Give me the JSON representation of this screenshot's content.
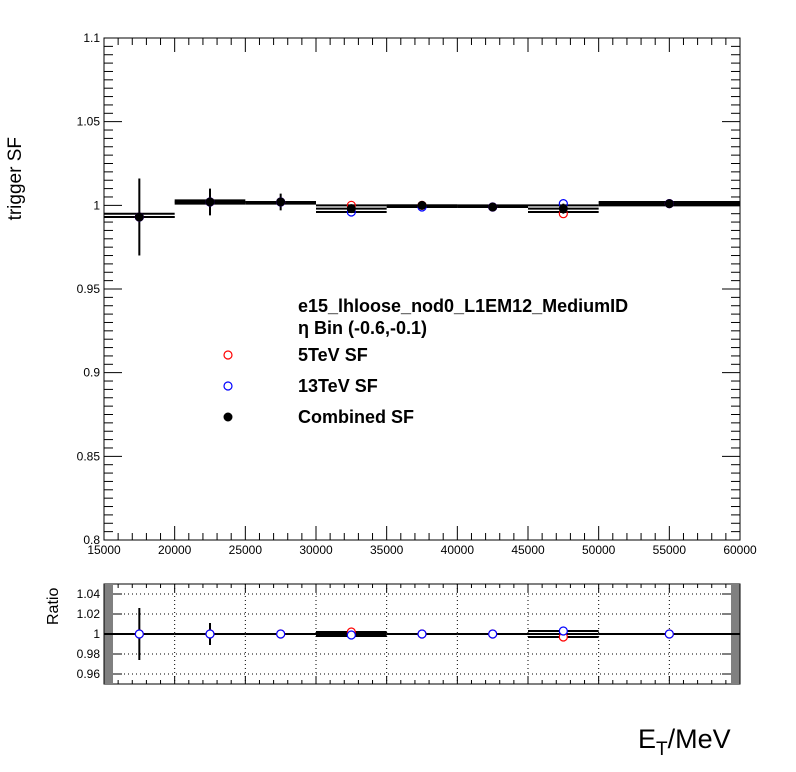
{
  "chart_data": [
    {
      "type": "scatter",
      "title": "",
      "xlabel": "",
      "ylabel": "trigger SF",
      "xlim": [
        15000,
        60000
      ],
      "ylim": [
        0.8,
        1.1
      ],
      "x_ticks": [
        15000,
        20000,
        25000,
        30000,
        35000,
        40000,
        45000,
        50000,
        55000,
        60000
      ],
      "y_ticks": [
        0.8,
        0.85,
        0.9,
        0.95,
        1,
        1.05,
        1.1
      ],
      "x_tick_labels": [
        "15000",
        "20000",
        "25000",
        "30000",
        "35000",
        "40000",
        "45000",
        "50000",
        "55000",
        "60000"
      ],
      "y_tick_labels": [
        "0.8",
        "0.85",
        "0.9",
        "0.95",
        "1",
        "1.05",
        "1.1"
      ],
      "grid": false,
      "legend": {
        "header": [
          "e15_lhloose_nod0_L1EM12_MediumID",
          "η Bin (-0.6,-0.1)"
        ],
        "placement": "center",
        "entries": [
          "5TeV SF",
          "13TeV SF",
          "Combined SF"
        ]
      },
      "series": [
        {
          "name": "5TeV SF",
          "color": "#ff0000",
          "marker": "open-circle",
          "x": [
            17500,
            22500,
            27500,
            32500,
            37500,
            42500,
            47500,
            55000
          ],
          "y": [
            0.993,
            1.002,
            1.002,
            1.0,
            1.0,
            0.999,
            0.995,
            1.001
          ]
        },
        {
          "name": "13TeV SF",
          "color": "#0000ff",
          "marker": "open-circle",
          "x": [
            17500,
            22500,
            27500,
            32500,
            37500,
            42500,
            47500,
            55000
          ],
          "y": [
            0.993,
            1.002,
            1.002,
            0.996,
            0.999,
            0.999,
            1.001,
            1.001
          ]
        },
        {
          "name": "Combined SF",
          "color": "#000000",
          "marker": "filled-circle",
          "x": [
            17500,
            22500,
            27500,
            32500,
            37500,
            42500,
            47500,
            55000
          ],
          "y": [
            0.993,
            1.002,
            1.002,
            0.998,
            1.0,
            0.999,
            0.998,
            1.001
          ],
          "xerr_low": [
            2500,
            2500,
            2500,
            2500,
            2500,
            2500,
            2500,
            5000
          ],
          "xerr_high": [
            2500,
            2500,
            2500,
            2500,
            2500,
            2500,
            2500,
            5000
          ],
          "yerr": [
            0.023,
            0.008,
            0.005,
            0.002,
            0.001,
            0.001,
            0.003,
            0.002
          ],
          "band": [
            {
              "x0": 15000,
              "x1": 20000,
              "lo": 0.993,
              "hi": 0.995
            },
            {
              "x0": 20000,
              "x1": 25000,
              "lo": 1.001,
              "hi": 1.003
            },
            {
              "x0": 25000,
              "x1": 30000,
              "lo": 1.001,
              "hi": 1.002
            },
            {
              "x0": 30000,
              "x1": 35000,
              "lo": 0.996,
              "hi": 1.0
            },
            {
              "x0": 35000,
              "x1": 40000,
              "lo": 0.999,
              "hi": 1.0
            },
            {
              "x0": 40000,
              "x1": 45000,
              "lo": 0.999,
              "hi": 1.0
            },
            {
              "x0": 45000,
              "x1": 50000,
              "lo": 0.996,
              "hi": 1.0
            },
            {
              "x0": 50000,
              "x1": 60000,
              "lo": 1.0,
              "hi": 1.002
            }
          ]
        }
      ]
    },
    {
      "type": "scatter",
      "title": "",
      "xlabel": "E_T/MeV",
      "ylabel": "Ratio",
      "xlim": [
        15000,
        60000
      ],
      "ylim": [
        0.95,
        1.05
      ],
      "y_ticks": [
        0.96,
        0.98,
        1,
        1.02,
        1.04
      ],
      "y_tick_labels": [
        "0.96",
        "0.98",
        "1",
        "1.02",
        "1.04"
      ],
      "x_grid": [
        20000,
        25000,
        30000,
        35000,
        40000,
        45000,
        50000,
        55000
      ],
      "y_grid": [
        0.96,
        0.98,
        1.0,
        1.02,
        1.04
      ],
      "grid": true,
      "series": [
        {
          "name": "",
          "color": "#ff0000",
          "marker": "open-circle",
          "x": [
            17500,
            22500,
            27500,
            32500,
            37500,
            42500,
            47500,
            55000
          ],
          "y": [
            1.0,
            1.0,
            1.0,
            1.002,
            1.0,
            1.0,
            0.997,
            1.0
          ]
        },
        {
          "name": "",
          "color": "#0000ff",
          "marker": "open-circle",
          "x": [
            17500,
            22500,
            27500,
            32500,
            37500,
            42500,
            47500,
            55000
          ],
          "y": [
            1.0,
            1.0,
            1.0,
            0.999,
            1.0,
            1.0,
            1.003,
            1.0
          ]
        },
        {
          "name": "",
          "color": "#000000",
          "marker": "none",
          "x": [
            17500,
            22500,
            27500,
            32500,
            37500,
            42500,
            47500,
            55000
          ],
          "y": [
            1.0,
            1.0,
            1.0,
            1.0,
            1.0,
            1.0,
            1.0,
            1.0
          ],
          "xerr_low": [
            2500,
            2500,
            2500,
            2500,
            2500,
            2500,
            2500,
            5000
          ],
          "xerr_high": [
            2500,
            2500,
            2500,
            2500,
            2500,
            2500,
            2500,
            5000
          ],
          "yerr": [
            0.026,
            0.011,
            0.004,
            0.002,
            0.002,
            0.002,
            0.004,
            0.002
          ],
          "band": [
            {
              "x0": 30000,
              "x1": 35000,
              "lo": 0.998,
              "hi": 1.002
            },
            {
              "x0": 45000,
              "x1": 50000,
              "lo": 0.997,
              "hi": 1.003
            }
          ]
        }
      ]
    }
  ]
}
